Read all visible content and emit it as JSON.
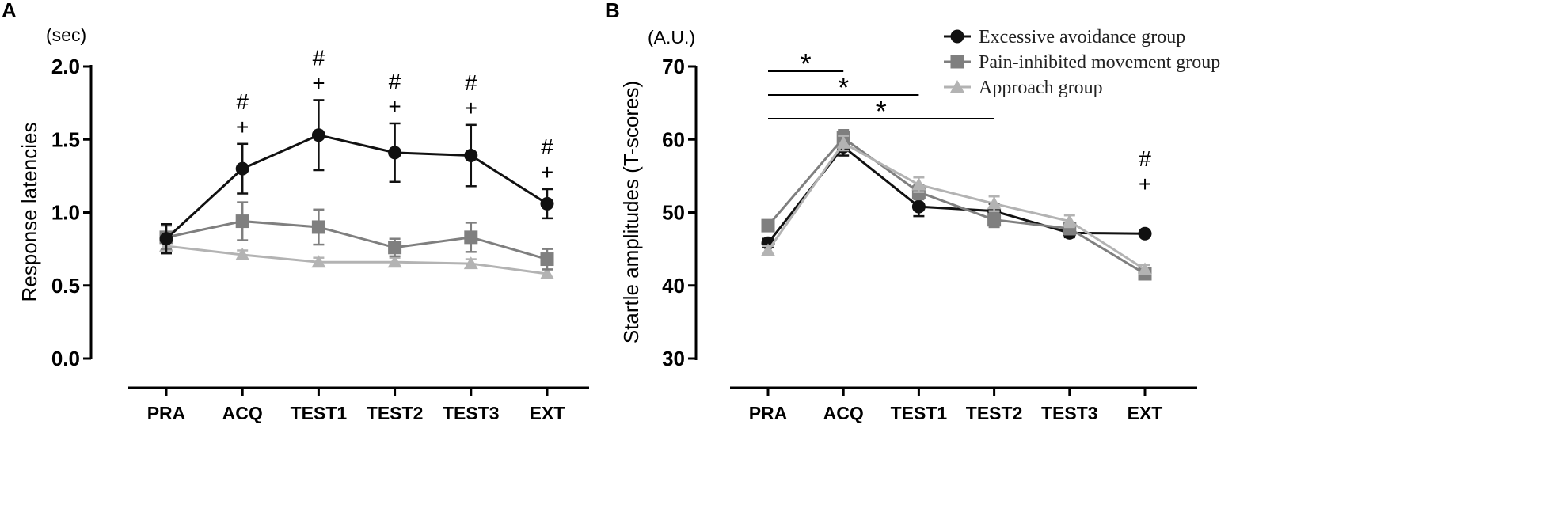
{
  "colors": {
    "black": "#111111",
    "dark_gray": "#7f7f7f",
    "light_gray": "#b3b3b3"
  },
  "chart_data": [
    {
      "type": "line",
      "panel": "A",
      "unit": "(sec)",
      "ylabel": "Response latencies",
      "ylim": [
        0,
        2.0
      ],
      "yticks": [
        "0.0",
        "0.5",
        "1.0",
        "1.5",
        "2.0"
      ],
      "categories": [
        "PRA",
        "ACQ",
        "TEST1",
        "TEST2",
        "TEST3",
        "EXT"
      ],
      "series": [
        {
          "name": "Excessive avoidance group",
          "color": "#111111",
          "marker": "circle",
          "values": [
            0.82,
            1.3,
            1.53,
            1.41,
            1.39,
            1.06
          ],
          "errors": [
            0.1,
            0.17,
            0.24,
            0.2,
            0.21,
            0.1
          ]
        },
        {
          "name": "Pain-inhibited movement group",
          "color": "#7f7f7f",
          "marker": "square",
          "values": [
            0.83,
            0.94,
            0.9,
            0.76,
            0.83,
            0.68
          ],
          "errors": [
            0.08,
            0.13,
            0.12,
            0.06,
            0.1,
            0.07
          ]
        },
        {
          "name": "Approach group",
          "color": "#b3b3b3",
          "marker": "triangle",
          "values": [
            0.77,
            0.71,
            0.66,
            0.66,
            0.65,
            0.58
          ],
          "errors": [
            0.03,
            0.03,
            0.03,
            0.03,
            0.03,
            0.03
          ]
        }
      ],
      "annotations": [
        {
          "category": "ACQ",
          "hash": "#",
          "plus": "+"
        },
        {
          "category": "TEST1",
          "hash": "#",
          "plus": "+"
        },
        {
          "category": "TEST2",
          "hash": "#",
          "plus": "+"
        },
        {
          "category": "TEST3",
          "hash": "#",
          "plus": "+"
        },
        {
          "category": "EXT",
          "hash": "#",
          "plus": "+"
        }
      ]
    },
    {
      "type": "line",
      "panel": "B",
      "unit": "(A.U.)",
      "ylabel": "Startle amplitudes (T-scores)",
      "ylim": [
        30,
        70
      ],
      "yticks": [
        "30",
        "40",
        "50",
        "60",
        "70"
      ],
      "categories": [
        "PRA",
        "ACQ",
        "TEST1",
        "TEST2",
        "TEST3",
        "EXT"
      ],
      "series": [
        {
          "name": "Excessive avoidance group",
          "color": "#111111",
          "marker": "circle",
          "values": [
            45.8,
            59.0,
            50.8,
            50.2,
            47.2,
            47.1
          ],
          "errors": [
            0.6,
            1.2,
            1.3,
            1.0,
            0.6,
            0.0
          ]
        },
        {
          "name": "Pain-inhibited movement group",
          "color": "#7f7f7f",
          "marker": "square",
          "values": [
            48.2,
            60.2,
            52.8,
            49.0,
            47.8,
            41.6
          ],
          "errors": [
            0.7,
            1.1,
            1.0,
            1.0,
            0.8,
            0.6
          ]
        },
        {
          "name": "Approach group",
          "color": "#b3b3b3",
          "marker": "triangle",
          "values": [
            44.8,
            59.5,
            53.8,
            51.2,
            48.8,
            42.2
          ],
          "errors": [
            0.6,
            1.0,
            1.0,
            1.0,
            0.8,
            0.6
          ]
        }
      ],
      "significance": [
        {
          "from": "PRA",
          "to": "ACQ",
          "label": "*"
        },
        {
          "from": "PRA",
          "to": "TEST1",
          "label": "*"
        },
        {
          "from": "PRA",
          "to": "TEST2",
          "label": "*"
        }
      ],
      "annotations": [
        {
          "category": "EXT",
          "hash": "#",
          "plus": "+"
        }
      ],
      "legend": [
        "Excessive avoidance group",
        "Pain-inhibited movement group",
        "Approach group"
      ]
    }
  ]
}
